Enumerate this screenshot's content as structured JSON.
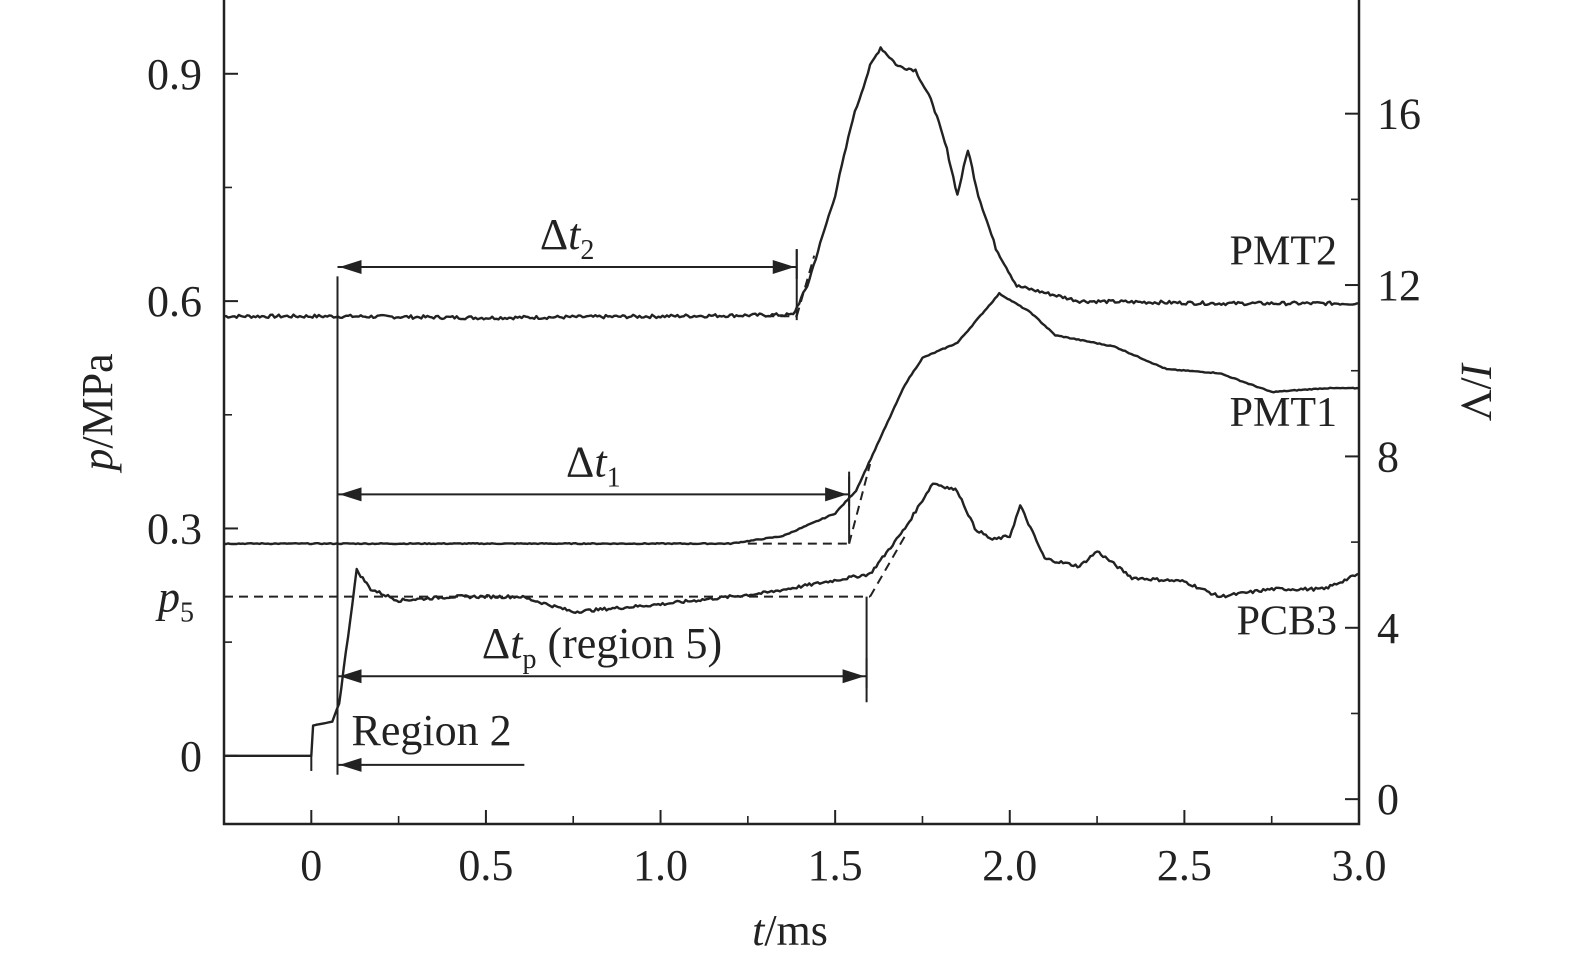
{
  "chart_data": {
    "type": "line",
    "x_axis": {
      "label_var": "t",
      "label_unit": "/ms",
      "range": [
        -0.25,
        3.0
      ],
      "ticks": [
        0,
        0.5,
        1.0,
        1.5,
        2.0,
        2.5,
        3.0
      ],
      "tick_labels": [
        "0",
        "0.5",
        "1.0",
        "1.5",
        "2.0",
        "2.5",
        "3.0"
      ]
    },
    "y_left": {
      "label_var": "p",
      "label_unit": "/MPa",
      "range": [
        -0.09,
        1.0
      ],
      "ticks": [
        0,
        0.3,
        0.6,
        0.9
      ],
      "tick_labels": [
        "0",
        "0.3",
        "0.6",
        "0.9"
      ],
      "extra_label": {
        "sym": "p",
        "sub": "5",
        "value": 0.21
      }
    },
    "y_right": {
      "label_var": "I",
      "label_unit": "/V",
      "range": [
        -0.58,
        18.7
      ],
      "ticks": [
        0,
        4,
        8,
        12,
        16
      ],
      "tick_labels": [
        "0",
        "4",
        "8",
        "12",
        "16"
      ]
    },
    "series": [
      {
        "name": "PMT2",
        "axis": "left",
        "points": [
          [
            -0.25,
            0.58
          ],
          [
            0.1,
            0.58
          ],
          [
            0.5,
            0.578
          ],
          [
            1.0,
            0.58
          ],
          [
            1.38,
            0.582
          ],
          [
            1.42,
            0.62
          ],
          [
            1.5,
            0.74
          ],
          [
            1.55,
            0.84
          ],
          [
            1.6,
            0.91
          ],
          [
            1.63,
            0.935
          ],
          [
            1.68,
            0.91
          ],
          [
            1.73,
            0.905
          ],
          [
            1.78,
            0.86
          ],
          [
            1.82,
            0.8
          ],
          [
            1.85,
            0.74
          ],
          [
            1.88,
            0.8
          ],
          [
            1.91,
            0.74
          ],
          [
            1.96,
            0.67
          ],
          [
            2.02,
            0.62
          ],
          [
            2.2,
            0.6
          ],
          [
            2.6,
            0.597
          ],
          [
            3.0,
            0.597
          ]
        ]
      },
      {
        "name": "PMT1",
        "axis": "left",
        "points": [
          [
            -0.25,
            0.28
          ],
          [
            1.2,
            0.28
          ],
          [
            1.35,
            0.29
          ],
          [
            1.5,
            0.32
          ],
          [
            1.56,
            0.35
          ],
          [
            1.62,
            0.41
          ],
          [
            1.7,
            0.49
          ],
          [
            1.75,
            0.525
          ],
          [
            1.85,
            0.545
          ],
          [
            1.97,
            0.61
          ],
          [
            2.06,
            0.585
          ],
          [
            2.13,
            0.555
          ],
          [
            2.3,
            0.54
          ],
          [
            2.45,
            0.51
          ],
          [
            2.6,
            0.505
          ],
          [
            2.75,
            0.48
          ],
          [
            2.9,
            0.485
          ],
          [
            3.0,
            0.485
          ]
        ]
      },
      {
        "name": "PCB3",
        "axis": "left",
        "points": [
          [
            -0.25,
            0.0
          ],
          [
            0.0,
            0.0
          ],
          [
            0.005,
            0.04
          ],
          [
            0.06,
            0.045
          ],
          [
            0.08,
            0.07
          ],
          [
            0.13,
            0.245
          ],
          [
            0.17,
            0.22
          ],
          [
            0.25,
            0.205
          ],
          [
            0.4,
            0.21
          ],
          [
            0.6,
            0.21
          ],
          [
            0.75,
            0.19
          ],
          [
            1.0,
            0.2
          ],
          [
            1.3,
            0.215
          ],
          [
            1.6,
            0.24
          ],
          [
            1.7,
            0.3
          ],
          [
            1.78,
            0.36
          ],
          [
            1.85,
            0.35
          ],
          [
            1.9,
            0.3
          ],
          [
            1.95,
            0.285
          ],
          [
            2.0,
            0.29
          ],
          [
            2.03,
            0.33
          ],
          [
            2.1,
            0.26
          ],
          [
            2.2,
            0.25
          ],
          [
            2.25,
            0.27
          ],
          [
            2.35,
            0.235
          ],
          [
            2.5,
            0.23
          ],
          [
            2.6,
            0.21
          ],
          [
            2.75,
            0.22
          ],
          [
            2.9,
            0.22
          ],
          [
            3.0,
            0.24
          ]
        ]
      }
    ],
    "annotations": [
      {
        "sym": "Δt",
        "sub": "2",
        "from": 0.075,
        "to": 1.39,
        "y": 0.645
      },
      {
        "sym": "Δt",
        "sub": "1",
        "from": 0.075,
        "to": 1.54,
        "y": 0.345
      },
      {
        "sym": "Δt",
        "sub": "p",
        "suffix": " (region 5)",
        "from": 0.075,
        "to": 1.59,
        "y": 0.105
      },
      {
        "text": "Region 2",
        "from": 0.075,
        "to": 0.61,
        "y": -0.012
      }
    ]
  }
}
